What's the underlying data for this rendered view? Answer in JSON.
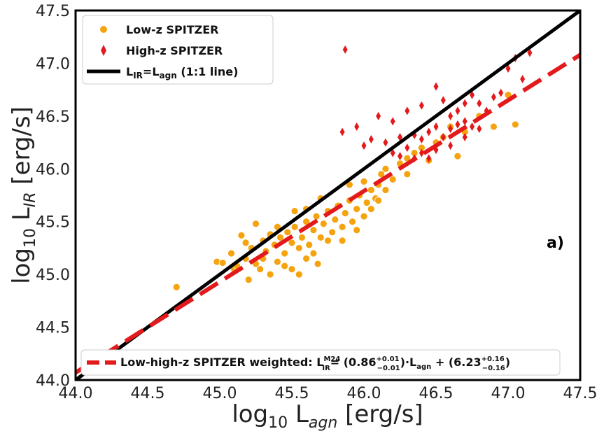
{
  "chart_data": {
    "type": "scatter",
    "xlabel": "log10 Lagn [erg/s]",
    "ylabel": "log10 LIR [erg/s]",
    "xlim": [
      44.0,
      47.5
    ],
    "ylim": [
      44.0,
      47.5
    ],
    "xticks": [
      "44.0",
      "44.5",
      "45.0",
      "45.5",
      "46.0",
      "46.5",
      "47.0",
      "47.5"
    ],
    "yticks": [
      "44.0",
      "44.5",
      "45.0",
      "45.5",
      "46.0",
      "46.5",
      "47.0",
      "47.5"
    ],
    "grid": false,
    "legend_position": "top-left",
    "panel_label": "a)",
    "colors": {
      "low_z": "#f5a30f",
      "high_z": "#e31a1c",
      "one_to_one": "#000000",
      "fit": "#e31a1c"
    },
    "series": [
      {
        "name": "Low-z SPITZER",
        "marker": "circle",
        "points": [
          [
            44.7,
            44.88
          ],
          [
            44.98,
            45.12
          ],
          [
            45.02,
            45.11
          ],
          [
            45.08,
            45.2
          ],
          [
            45.1,
            45.05
          ],
          [
            45.15,
            45.37
          ],
          [
            45.18,
            45.3
          ],
          [
            45.2,
            44.95
          ],
          [
            45.22,
            45.25
          ],
          [
            45.25,
            45.48
          ],
          [
            45.28,
            45.05
          ],
          [
            45.3,
            45.15
          ],
          [
            45.32,
            45.22
          ],
          [
            45.35,
            45.0
          ],
          [
            45.38,
            45.28
          ],
          [
            45.4,
            45.12
          ],
          [
            45.42,
            45.35
          ],
          [
            45.45,
            45.2
          ],
          [
            45.47,
            45.4
          ],
          [
            45.5,
            45.05
          ],
          [
            45.5,
            45.3
          ],
          [
            45.52,
            45.45
          ],
          [
            45.55,
            45.25
          ],
          [
            45.57,
            45.35
          ],
          [
            45.6,
            45.5
          ],
          [
            45.62,
            45.28
          ],
          [
            45.65,
            45.42
          ],
          [
            45.67,
            45.55
          ],
          [
            45.7,
            45.35
          ],
          [
            45.72,
            45.48
          ],
          [
            45.75,
            45.6
          ],
          [
            45.78,
            45.4
          ],
          [
            45.8,
            45.52
          ],
          [
            45.82,
            45.65
          ],
          [
            45.85,
            45.45
          ],
          [
            45.87,
            45.58
          ],
          [
            45.9,
            45.7
          ],
          [
            45.92,
            45.5
          ],
          [
            45.95,
            45.62
          ],
          [
            45.97,
            45.75
          ],
          [
            46.0,
            45.55
          ],
          [
            46.02,
            45.68
          ],
          [
            46.05,
            45.8
          ],
          [
            46.08,
            45.72
          ],
          [
            46.1,
            45.85
          ],
          [
            46.12,
            45.95
          ],
          [
            46.15,
            46.0
          ],
          [
            46.2,
            45.9
          ],
          [
            46.25,
            46.05
          ],
          [
            46.3,
            46.1
          ],
          [
            46.35,
            46.15
          ],
          [
            46.4,
            46.2
          ],
          [
            46.45,
            46.08
          ],
          [
            46.5,
            46.25
          ],
          [
            46.55,
            46.3
          ],
          [
            46.6,
            46.4
          ],
          [
            46.65,
            46.12
          ],
          [
            46.7,
            46.35
          ],
          [
            46.8,
            46.5
          ],
          [
            46.9,
            46.4
          ],
          [
            47.0,
            46.7
          ],
          [
            47.05,
            46.42
          ],
          [
            45.52,
            45.6
          ],
          [
            45.45,
            45.08
          ],
          [
            45.55,
            45.0
          ],
          [
            45.6,
            45.15
          ],
          [
            45.4,
            45.45
          ],
          [
            45.35,
            45.38
          ],
          [
            45.7,
            45.72
          ],
          [
            45.9,
            45.85
          ],
          [
            46.1,
            45.7
          ],
          [
            45.65,
            45.2
          ],
          [
            45.3,
            45.32
          ],
          [
            45.25,
            45.1
          ],
          [
            45.75,
            45.32
          ],
          [
            46.0,
            45.88
          ],
          [
            46.15,
            45.8
          ],
          [
            46.05,
            45.62
          ],
          [
            45.85,
            45.32
          ],
          [
            45.95,
            45.42
          ],
          [
            45.12,
            45.08
          ],
          [
            45.18,
            45.15
          ],
          [
            45.6,
            45.62
          ],
          [
            45.68,
            45.1
          ],
          [
            46.3,
            45.95
          ]
        ]
      },
      {
        "name": "High-z SPITZER",
        "marker": "diamond",
        "points": [
          [
            45.87,
            47.13
          ],
          [
            46.1,
            46.5
          ],
          [
            45.85,
            46.35
          ],
          [
            45.95,
            46.4
          ],
          [
            46.2,
            46.45
          ],
          [
            46.3,
            46.55
          ],
          [
            46.4,
            46.6
          ],
          [
            46.5,
            46.78
          ],
          [
            46.55,
            46.65
          ],
          [
            46.6,
            46.5
          ],
          [
            46.65,
            46.55
          ],
          [
            46.7,
            46.62
          ],
          [
            46.75,
            46.7
          ],
          [
            46.8,
            46.62
          ],
          [
            46.9,
            46.68
          ],
          [
            47.0,
            46.95
          ],
          [
            47.05,
            47.05
          ],
          [
            47.15,
            47.1
          ],
          [
            47.1,
            46.85
          ],
          [
            46.0,
            46.22
          ],
          [
            46.05,
            46.28
          ],
          [
            46.15,
            46.25
          ],
          [
            46.25,
            46.3
          ],
          [
            46.35,
            46.32
          ],
          [
            46.4,
            46.28
          ],
          [
            46.45,
            46.35
          ],
          [
            46.5,
            46.4
          ],
          [
            46.55,
            46.3
          ],
          [
            46.6,
            46.38
          ],
          [
            46.65,
            46.42
          ],
          [
            46.7,
            46.45
          ],
          [
            46.75,
            46.4
          ],
          [
            46.45,
            46.1
          ],
          [
            46.5,
            46.18
          ],
          [
            46.4,
            46.15
          ],
          [
            46.35,
            46.1
          ],
          [
            46.25,
            46.12
          ],
          [
            46.2,
            46.15
          ],
          [
            46.3,
            46.2
          ],
          [
            46.6,
            46.22
          ],
          [
            46.7,
            46.3
          ],
          [
            46.8,
            46.38
          ],
          [
            46.85,
            46.55
          ],
          [
            46.95,
            46.72
          ]
        ]
      }
    ],
    "lines": [
      {
        "name": "LIR=Lagn (1:1 line)",
        "style": "solid",
        "slope": 1.0,
        "intercept": 0.0
      },
      {
        "name": "Low-high-z SPITZER weighted: LIR M24 = (0.86 +0.01 -0.01)·Lagn + (6.23 +0.16 -0.16)",
        "style": "dashed",
        "slope": 0.86,
        "intercept": 6.23
      }
    ]
  },
  "legend_top": {
    "low_z": "Low-z SPITZER",
    "high_z": "High-z SPITZER",
    "one_to_one_main": "L",
    "one_to_one_sub1": "IR",
    "one_to_one_mid": "=L",
    "one_to_one_sub2": "agn",
    "one_to_one_tail": " (1:1 line)"
  },
  "legend_fit": {
    "prefix": "Low-high-z SPITZER weighted: L",
    "l_sup": "M24",
    "l_sub": "IR",
    "eq1": "= (0.86",
    "slope_up": "+0.01",
    "slope_down": "−0.01",
    "eq2": ")·L",
    "agn_sub": "agn",
    "eq3": " + (6.23",
    "int_up": "+0.16",
    "int_down": "−0.16",
    "eq4": ")"
  },
  "axis_labels": {
    "x_main": "log",
    "x_sub": "10",
    "x_mid": " L",
    "x_italic_sub": "agn",
    "x_tail": " [erg/s]",
    "y_main": "log",
    "y_sub": "10",
    "y_mid": " L",
    "y_italic_sub": "IR",
    "y_tail": " [erg/s]"
  }
}
